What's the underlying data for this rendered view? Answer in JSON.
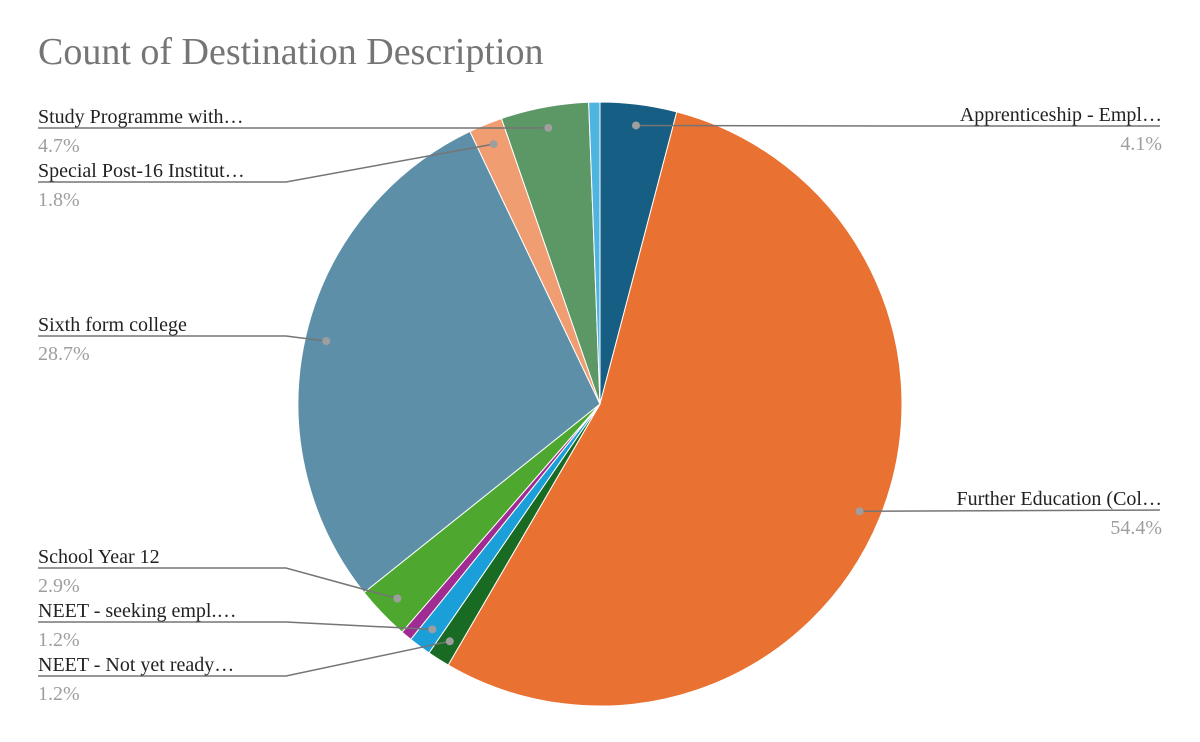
{
  "chart_data": {
    "type": "pie",
    "title": "Count of Destination Description",
    "slices": [
      {
        "label": "Apprenticeship - Empl…",
        "pct_label": "4.1%",
        "value": 4.1,
        "color": "#175e84",
        "labeled": true
      },
      {
        "label": "Further Education (Col…",
        "pct_label": "54.4%",
        "value": 54.4,
        "color": "#e97132",
        "labeled": true
      },
      {
        "label": "NEET - Not yet ready…",
        "pct_label": "1.2%",
        "value": 1.2,
        "color": "#196b24",
        "labeled": true
      },
      {
        "label": "NEET - seeking empl.…",
        "pct_label": "1.2%",
        "value": 1.2,
        "color": "#1b9fd8",
        "labeled": true
      },
      {
        "label": "",
        "pct_label": "",
        "value": 0.6,
        "color": "#a02b93",
        "labeled": false
      },
      {
        "label": "School Year 12",
        "pct_label": "2.9%",
        "value": 2.9,
        "color": "#4ea72e",
        "labeled": true
      },
      {
        "label": "Sixth form college",
        "pct_label": "28.7%",
        "value": 28.7,
        "color": "#5d8fa8",
        "labeled": true
      },
      {
        "label": "Special Post-16 Institut…",
        "pct_label": "1.8%",
        "value": 1.8,
        "color": "#f09d72",
        "labeled": true
      },
      {
        "label": "Study Programme with…",
        "pct_label": "4.7%",
        "value": 4.7,
        "color": "#5b9866",
        "labeled": true
      },
      {
        "label": "",
        "pct_label": "",
        "value": 0.6,
        "color": "#4fb4e0",
        "labeled": false
      }
    ],
    "legend": "none",
    "label_style": "callouts-with-leader-lines"
  }
}
